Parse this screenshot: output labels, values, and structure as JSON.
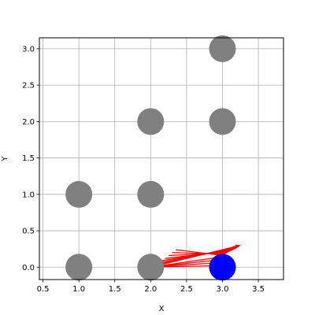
{
  "chart_data": {
    "type": "scatter",
    "title": "",
    "xlabel": "X",
    "ylabel": "Y",
    "xlim": [
      0.45,
      3.85
    ],
    "ylim": [
      -0.17,
      3.15
    ],
    "xticks": [
      "0.5",
      "1.0",
      "1.5",
      "2.0",
      "2.5",
      "3.0",
      "3.5"
    ],
    "yticks": [
      "0.0",
      "0.5",
      "1.0",
      "1.5",
      "2.0",
      "2.5",
      "3.0"
    ],
    "grid": true,
    "points": [
      {
        "x": 1,
        "y": 0,
        "color": "#808080"
      },
      {
        "x": 2,
        "y": 0,
        "color": "#808080"
      },
      {
        "x": 1,
        "y": 1,
        "color": "#808080"
      },
      {
        "x": 2,
        "y": 1,
        "color": "#808080"
      },
      {
        "x": 2,
        "y": 2,
        "color": "#808080"
      },
      {
        "x": 3,
        "y": 2,
        "color": "#808080"
      },
      {
        "x": 3,
        "y": 3,
        "color": "#808080"
      },
      {
        "x": 3,
        "y": 0,
        "color": "#0000ff"
      }
    ],
    "arrows": [
      {
        "x1": 2.0,
        "y1": 0.0,
        "x2": 3.25,
        "y2": 0.3,
        "color": "#ff0000"
      },
      {
        "x1": 2.05,
        "y1": 0.03,
        "x2": 3.22,
        "y2": 0.28,
        "color": "#ff0000"
      },
      {
        "x1": 2.1,
        "y1": 0.06,
        "x2": 3.18,
        "y2": 0.26,
        "color": "#ff0000"
      },
      {
        "x1": 2.15,
        "y1": 0.09,
        "x2": 3.14,
        "y2": 0.24,
        "color": "#ff0000"
      },
      {
        "x1": 2.2,
        "y1": 0.12,
        "x2": 3.1,
        "y2": 0.22,
        "color": "#ff0000"
      },
      {
        "x1": 2.25,
        "y1": 0.16,
        "x2": 3.07,
        "y2": 0.2,
        "color": "#ff0000"
      },
      {
        "x1": 2.3,
        "y1": 0.2,
        "x2": 3.04,
        "y2": 0.18,
        "color": "#ff0000"
      },
      {
        "x1": 2.35,
        "y1": 0.24,
        "x2": 3.01,
        "y2": 0.16,
        "color": "#ff0000"
      },
      {
        "x1": 2.0,
        "y1": 0.0,
        "x2": 2.98,
        "y2": 0.14,
        "color": "#ff0000"
      },
      {
        "x1": 2.0,
        "y1": 0.0,
        "x2": 2.95,
        "y2": 0.1,
        "color": "#ff0000"
      },
      {
        "x1": 2.0,
        "y1": 0.0,
        "x2": 2.92,
        "y2": 0.06,
        "color": "#ff0000"
      },
      {
        "x1": 2.0,
        "y1": 0.0,
        "x2": 2.9,
        "y2": 0.02,
        "color": "#ff0000"
      }
    ]
  }
}
